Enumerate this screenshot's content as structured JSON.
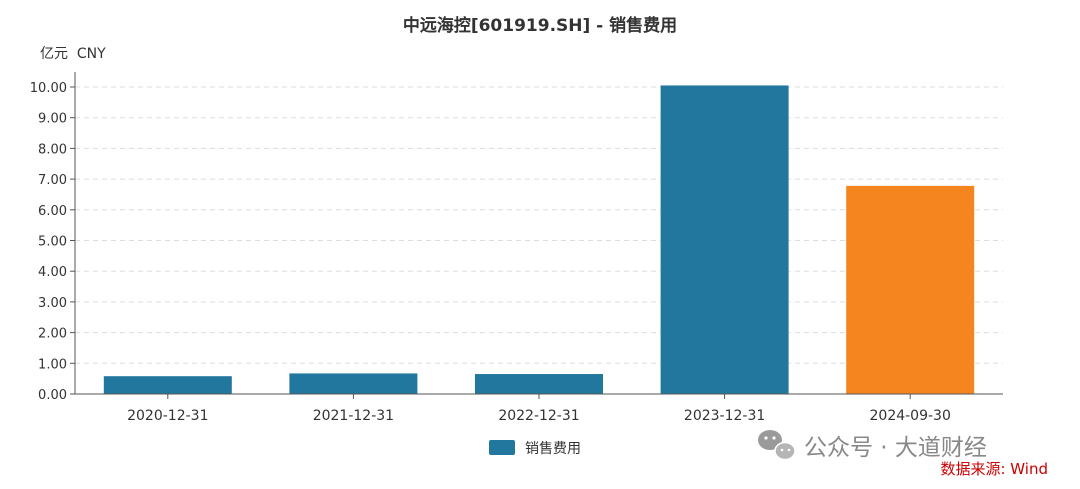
{
  "chart_data": {
    "type": "bar",
    "title": "中远海控[601919.SH] - 销售费用",
    "unit_label": "亿元  CNY",
    "categories": [
      "2020-12-31",
      "2021-12-31",
      "2022-12-31",
      "2023-12-31",
      "2024-09-30"
    ],
    "series": [
      {
        "name": "销售费用",
        "values": [
          0.58,
          0.67,
          0.65,
          10.05,
          6.78
        ]
      }
    ],
    "bar_colors": [
      "#22779f",
      "#22779f",
      "#22779f",
      "#22779f",
      "#f5861f"
    ],
    "ylim": [
      0,
      10
    ],
    "yticks": [
      "0.00",
      "1.00",
      "2.00",
      "3.00",
      "4.00",
      "5.00",
      "6.00",
      "7.00",
      "8.00",
      "9.00",
      "10.00"
    ],
    "grid": true,
    "legend_position": "bottom-center"
  },
  "watermark": {
    "text": "公众号 · 大道财经",
    "icon": "wechat-icon"
  },
  "source": "数据来源: Wind",
  "colors": {
    "axis": "#555555",
    "grid": "#dddddd",
    "text": "#333333",
    "source": "#cc0000"
  }
}
